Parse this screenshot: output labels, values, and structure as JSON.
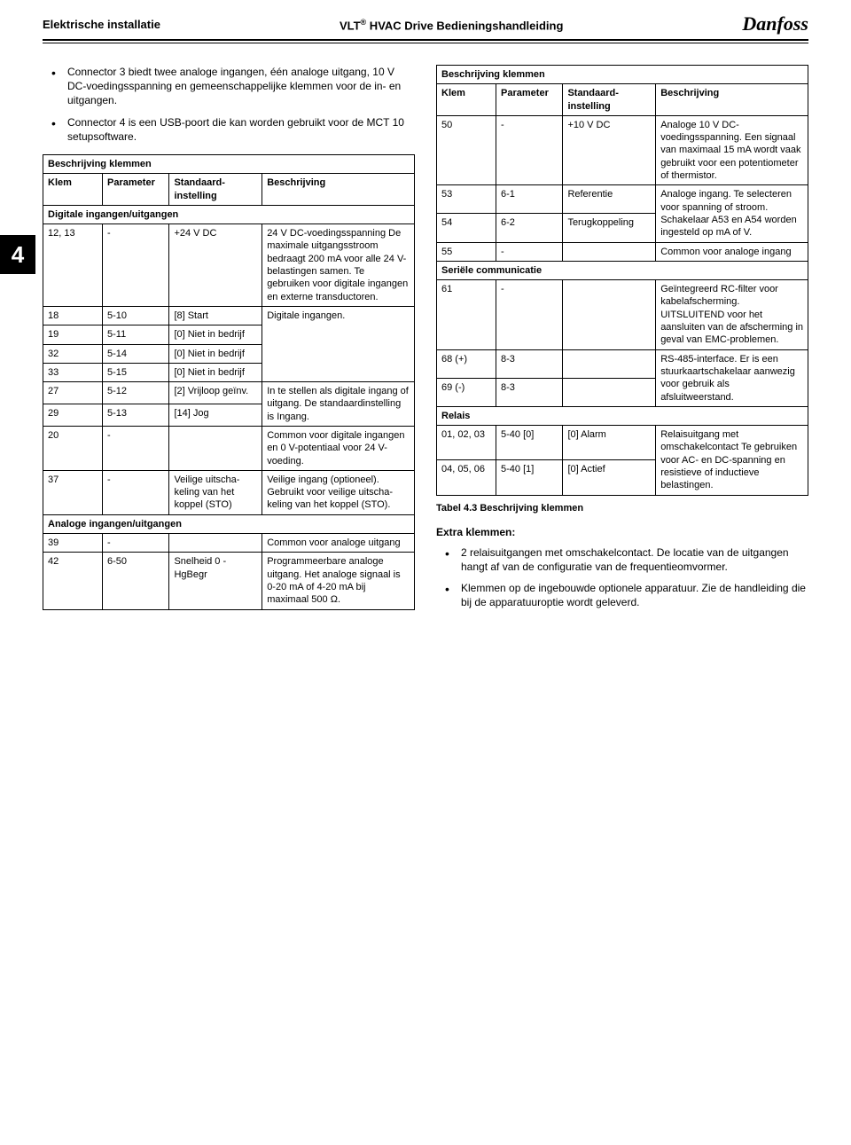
{
  "header": {
    "left": "Elektrische installatie",
    "center_prefix": "VLT",
    "center_sup": "®",
    "center_rest": " HVAC Drive Bedieningshandleiding",
    "logo": "Danfoss"
  },
  "section_tab": "4",
  "bullets_top": [
    "Connector 3 biedt twee analoge ingangen, één analoge uitgang, 10 V DC-voedingsspanning en gemeenschappelijke klemmen voor de in- en uitgangen.",
    "Connector 4 is een USB-poort die kan worden gebruikt voor de MCT 10 setupsoftware."
  ],
  "table_left": {
    "title": "Beschrijving klemmen",
    "head": [
      "Klem",
      "Parameter",
      "Standaard­instelling",
      "Beschrijving"
    ],
    "sections": [
      {
        "label": "Digitale ingangen/uitgangen",
        "rows": [
          {
            "klem": "12, 13",
            "param": "-",
            "setting": "+24 V DC",
            "desc": "24 V DC-voedings­spanning De maximale uitgangs­stroom bedraagt 200 mA voor alle 24 V-belastingen samen. Te gebruiken voor digitale ingangen en externe transductoren.",
            "rowspan": 1
          },
          {
            "klem": "18",
            "param": "5-10",
            "setting": "[8] Start",
            "desc": "Digitale ingangen.",
            "group_start": true,
            "group_span": 4
          },
          {
            "klem": "19",
            "param": "5-11",
            "setting": "[0] Niet in bedrijf"
          },
          {
            "klem": "32",
            "param": "5-14",
            "setting": "[0] Niet in bedrijf"
          },
          {
            "klem": "33",
            "param": "5-15",
            "setting": "[0] Niet in bedrijf"
          },
          {
            "klem": "27",
            "param": "5-12",
            "setting": "[2] Vrijloop geïnv.",
            "desc": "In te stellen als digitale ingang of uitgang. De standaardinstelling is Ingang.",
            "group_start": true,
            "group_span": 2
          },
          {
            "klem": "29",
            "param": "5-13",
            "setting": "[14] Jog"
          },
          {
            "klem": "20",
            "param": "-",
            "setting": "",
            "desc": "Common voor digitale ingangen en 0 V-potentiaal voor 24 V-voeding."
          },
          {
            "klem": "37",
            "param": "-",
            "setting": "Veilige uitscha­keling van het koppel (STO)",
            "desc": "Veilige ingang (optioneel). Gebruikt voor veilige uitscha­keling van het koppel (STO)."
          }
        ]
      },
      {
        "label": "Analoge ingangen/uitgangen",
        "rows": [
          {
            "klem": "39",
            "param": "-",
            "setting": "",
            "desc": "Common voor analoge uitgang"
          },
          {
            "klem": "42",
            "param": "6-50",
            "setting": "Snelheid 0 - HgBegr",
            "desc": "Programmeerbare analoge uitgang. Het analoge signaal is 0-20 mA of 4-20 mA bij maximaal 500 Ω."
          }
        ]
      }
    ]
  },
  "table_right": {
    "title": "Beschrijving klemmen",
    "head": [
      "Klem",
      "Parameter",
      "Standaard­instelling",
      "Beschrijving"
    ],
    "sections": [
      {
        "label": null,
        "rows": [
          {
            "klem": "50",
            "param": "-",
            "setting": "+10 V DC",
            "desc": "Analoge 10 V DC-voedingsspanning. Een signaal van maximaal 15 mA wordt vaak gebruikt voor een potenti­ometer of thermistor."
          },
          {
            "klem": "53",
            "param": "6-1",
            "setting": "Referentie",
            "desc": "Analoge ingang. Te selecteren voor spanning of stroom. Schakelaar A53 en A54 worden ingesteld op mA of V.",
            "group_start": true,
            "group_span": 2
          },
          {
            "klem": "54",
            "param": "6-2",
            "setting": "Terugkoppeling"
          },
          {
            "klem": "55",
            "param": "-",
            "setting": "",
            "desc": "Common voor analoge ingang"
          }
        ]
      },
      {
        "label": "Seriële communicatie",
        "rows": [
          {
            "klem": "61",
            "param": "-",
            "setting": "",
            "desc": "Geïntegreerd RC-filter voor kabelafscherming. UITSLUITEND voor het aansluiten van de afscherming in geval van EMC-problemen."
          },
          {
            "klem": "68 (+)",
            "param": "8-3",
            "setting": "",
            "desc": "RS-485-interface. Er is een stuurkaart­schakelaar aanwezig voor gebruik als afsluitweerstand.",
            "group_start": true,
            "group_span": 2
          },
          {
            "klem": "69 (-)",
            "param": "8-3",
            "setting": ""
          }
        ]
      },
      {
        "label": "Relais",
        "rows": [
          {
            "klem": "01, 02, 03",
            "param": "5-40 [0]",
            "setting": "[0] Alarm",
            "desc": "Relaisuitgang met omschakelcontact Te gebruiken voor AC- en DC-spanning en resistieve of inductieve belastingen.",
            "group_start": true,
            "group_span": 2
          },
          {
            "klem": "04, 05, 06",
            "param": "5-40 [1]",
            "setting": "[0] Actief"
          }
        ]
      }
    ]
  },
  "caption": "Tabel 4.3 Beschrijving klemmen",
  "extra_heading": "Extra klemmen:",
  "bullets_bottom": [
    "2 relaisuitgangen met omschakelcontact. De locatie van de uitgangen hangt af van de configuratie van de frequentieomvormer.",
    "Klemmen op de ingebouwde optionele apparatuur. Zie de handleiding die bij de appara­tuuroptie wordt geleverd."
  ]
}
